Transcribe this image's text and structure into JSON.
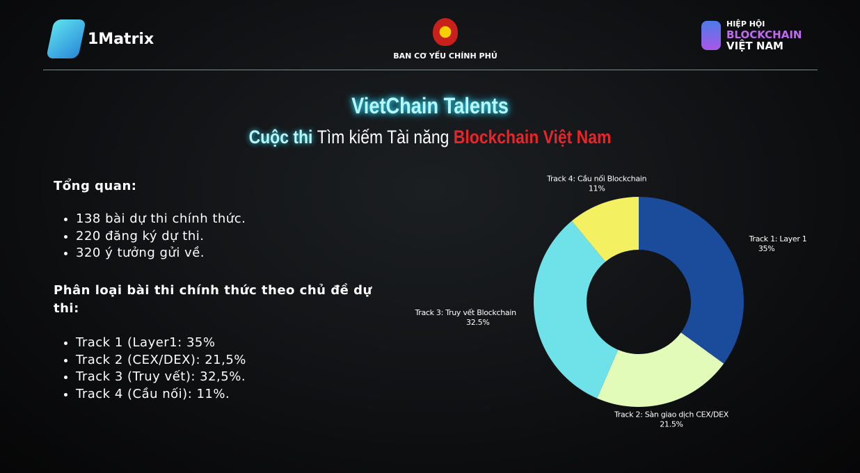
{
  "header": {
    "left_logo": "1Matrix",
    "center_logo": "BAN CƠ YẾU CHÍNH PHỦ",
    "right_logo": [
      "HIỆP HỘI",
      "BLOCKCHAIN",
      "VIỆT NAM"
    ]
  },
  "title": "VietChain Talents",
  "subtitle": [
    "Cuộc thi",
    "Tìm kiếm Tài năng",
    "Blockchain Việt Nam"
  ],
  "overview": {
    "heading": "Tổng quan:",
    "items": [
      "138 bài dự thi chính thức.",
      "220 đăng ký dự thi.",
      "320 ý tưởng gửi về."
    ]
  },
  "classification": {
    "heading": "Phân loại bài thi chính thức theo chủ đề dự thi:",
    "items": [
      "Track 1 (Layer1: 35%",
      "Track 2 (CEX/DEX): 21,5%",
      "Track 3 (Truy vết): 32,5%.",
      "Track 4 (Cầu nối): 11%."
    ]
  },
  "chart_data": {
    "type": "donut",
    "categories": [
      "Track 1: Layer 1",
      "Track 2: Sàn giao dịch CEX/DEX",
      "Track 3: Truy vết Blockchain",
      "Track 4: Cầu nối Blockchain"
    ],
    "values": [
      35,
      21.5,
      32.5,
      11
    ],
    "value_labels": [
      "35%",
      "21.5%",
      "32.5%",
      "11%"
    ],
    "colors": [
      "#1b4b9b",
      "#e2fbb9",
      "#6fe1e8",
      "#f3f062"
    ]
  }
}
